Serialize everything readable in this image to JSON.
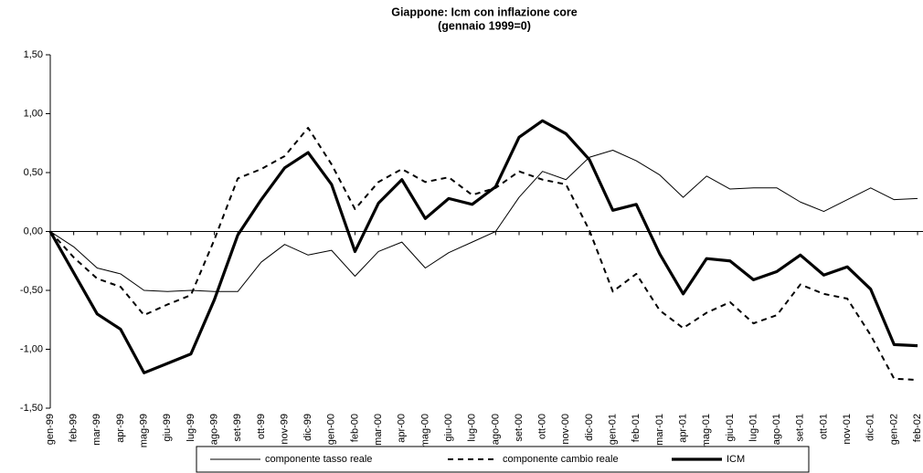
{
  "chart_data": {
    "type": "line",
    "title": "Giappone: Icm con inflazione core",
    "subtitle": "(gennaio 1999=0)",
    "categories": [
      "gen-99",
      "feb-99",
      "mar-99",
      "apr-99",
      "mag-99",
      "giu-99",
      "lug-99",
      "ago-99",
      "set-99",
      "ott-99",
      "nov-99",
      "dic-99",
      "gen-00",
      "feb-00",
      "mar-00",
      "apr-00",
      "mag-00",
      "giu-00",
      "lug-00",
      "ago-00",
      "set-00",
      "ott-00",
      "nov-00",
      "dic-00",
      "gen-01",
      "feb-01",
      "mar-01",
      "apr-01",
      "mag-01",
      "giu-01",
      "lug-01",
      "ago-01",
      "set-01",
      "ott-01",
      "nov-01",
      "dic-01",
      "gen-02",
      "feb-02"
    ],
    "series": [
      {
        "name": "componente tasso reale",
        "color": "#000000",
        "style": "thin",
        "values": [
          0,
          -0.13,
          -0.31,
          -0.36,
          -0.5,
          -0.51,
          -0.5,
          -0.51,
          -0.51,
          -0.26,
          -0.11,
          -0.2,
          -0.16,
          -0.38,
          -0.17,
          -0.09,
          -0.31,
          -0.18,
          -0.09,
          0.0,
          0.29,
          0.51,
          0.44,
          0.63,
          0.69,
          0.6,
          0.48,
          0.29,
          0.47,
          0.36,
          0.37,
          0.37,
          0.25,
          0.17,
          0.27,
          0.37,
          0.27,
          0.28
        ]
      },
      {
        "name": "componente cambio reale",
        "color": "#000000",
        "style": "dashed",
        "values": [
          0,
          -0.22,
          -0.4,
          -0.47,
          -0.71,
          -0.62,
          -0.54,
          -0.07,
          0.45,
          0.53,
          0.64,
          0.88,
          0.57,
          0.19,
          0.42,
          0.53,
          0.42,
          0.46,
          0.31,
          0.37,
          0.51,
          0.44,
          0.4,
          0.01,
          -0.51,
          -0.36,
          -0.67,
          -0.82,
          -0.69,
          -0.6,
          -0.78,
          -0.71,
          -0.45,
          -0.53,
          -0.57,
          -0.88,
          -1.25,
          -1.26
        ]
      },
      {
        "name": "ICM",
        "color": "#000000",
        "style": "thick",
        "values": [
          0,
          -0.35,
          -0.7,
          -0.83,
          -1.2,
          -1.12,
          -1.04,
          -0.58,
          -0.03,
          0.27,
          0.54,
          0.67,
          0.4,
          -0.17,
          0.24,
          0.44,
          0.11,
          0.28,
          0.23,
          0.38,
          0.8,
          0.94,
          0.83,
          0.61,
          0.18,
          0.23,
          -0.19,
          -0.53,
          -0.23,
          -0.25,
          -0.41,
          -0.34,
          -0.2,
          -0.37,
          -0.3,
          -0.49,
          -0.96,
          -0.97
        ]
      }
    ],
    "ylim": [
      -1.5,
      1.5
    ],
    "yticks": [
      {
        "value": -1.5,
        "label": "-1,50"
      },
      {
        "value": -1,
        "label": "-1,00"
      },
      {
        "value": -0.5,
        "label": "-0,50"
      },
      {
        "value": 0,
        "label": "0,00"
      },
      {
        "value": 0.5,
        "label": "0,50"
      },
      {
        "value": 1,
        "label": "1,00"
      },
      {
        "value": 1.5,
        "label": "1,50"
      }
    ],
    "legend": "bottom"
  }
}
